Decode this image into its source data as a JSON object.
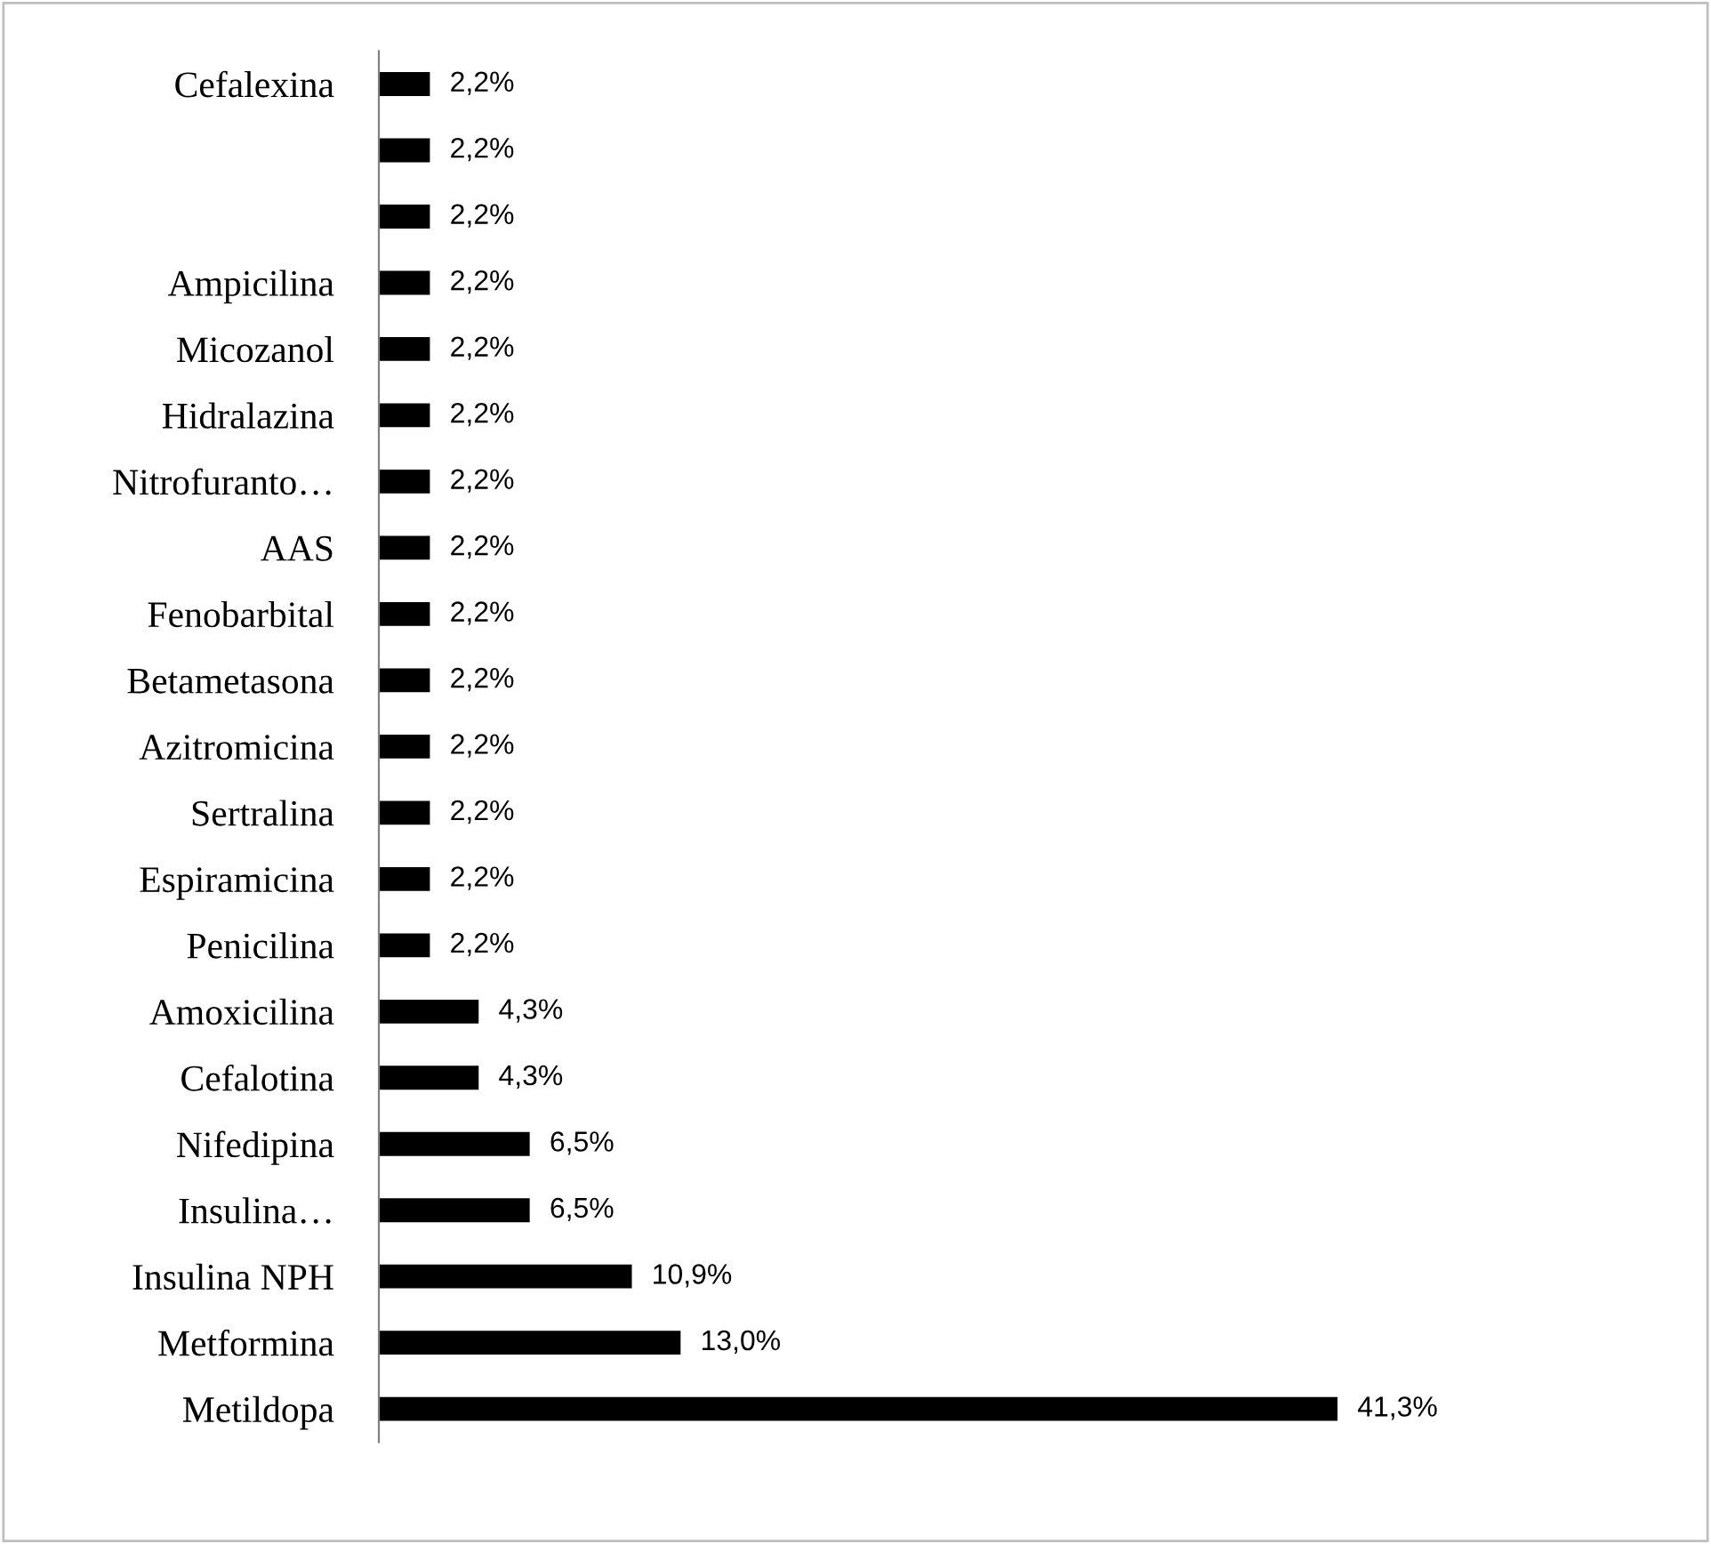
{
  "chart_data": {
    "type": "bar",
    "orientation": "horizontal",
    "categories": [
      "Cefalexina",
      null,
      null,
      "Ampicilina",
      "Micozanol",
      "Hidralazina",
      "Nitrofuranto…",
      "AAS",
      "Fenobarbital",
      "Betametasona",
      "Azitromicina",
      "Sertralina",
      "Espiramicina",
      "Penicilina",
      "Amoxicilina",
      "Cefalotina",
      "Nifedipina",
      "Insulina…",
      "Insulina NPH",
      "Metformina",
      "Metildopa"
    ],
    "values": [
      2.2,
      2.2,
      2.2,
      2.2,
      2.2,
      2.2,
      2.2,
      2.2,
      2.2,
      2.2,
      2.2,
      2.2,
      2.2,
      2.2,
      4.3,
      4.3,
      6.5,
      6.5,
      10.9,
      13.0,
      41.3
    ],
    "value_labels": [
      "2,2%",
      "2,2%",
      "2,2%",
      "2,2%",
      "2,2%",
      "2,2%",
      "2,2%",
      "2,2%",
      "2,2%",
      "2,2%",
      "2,2%",
      "2,2%",
      "2,2%",
      "2,2%",
      "4,3%",
      "4,3%",
      "6,5%",
      "6,5%",
      "10,9%",
      "13,0%",
      "41,3%"
    ],
    "color": "#000000",
    "grid": false,
    "legend": false
  }
}
